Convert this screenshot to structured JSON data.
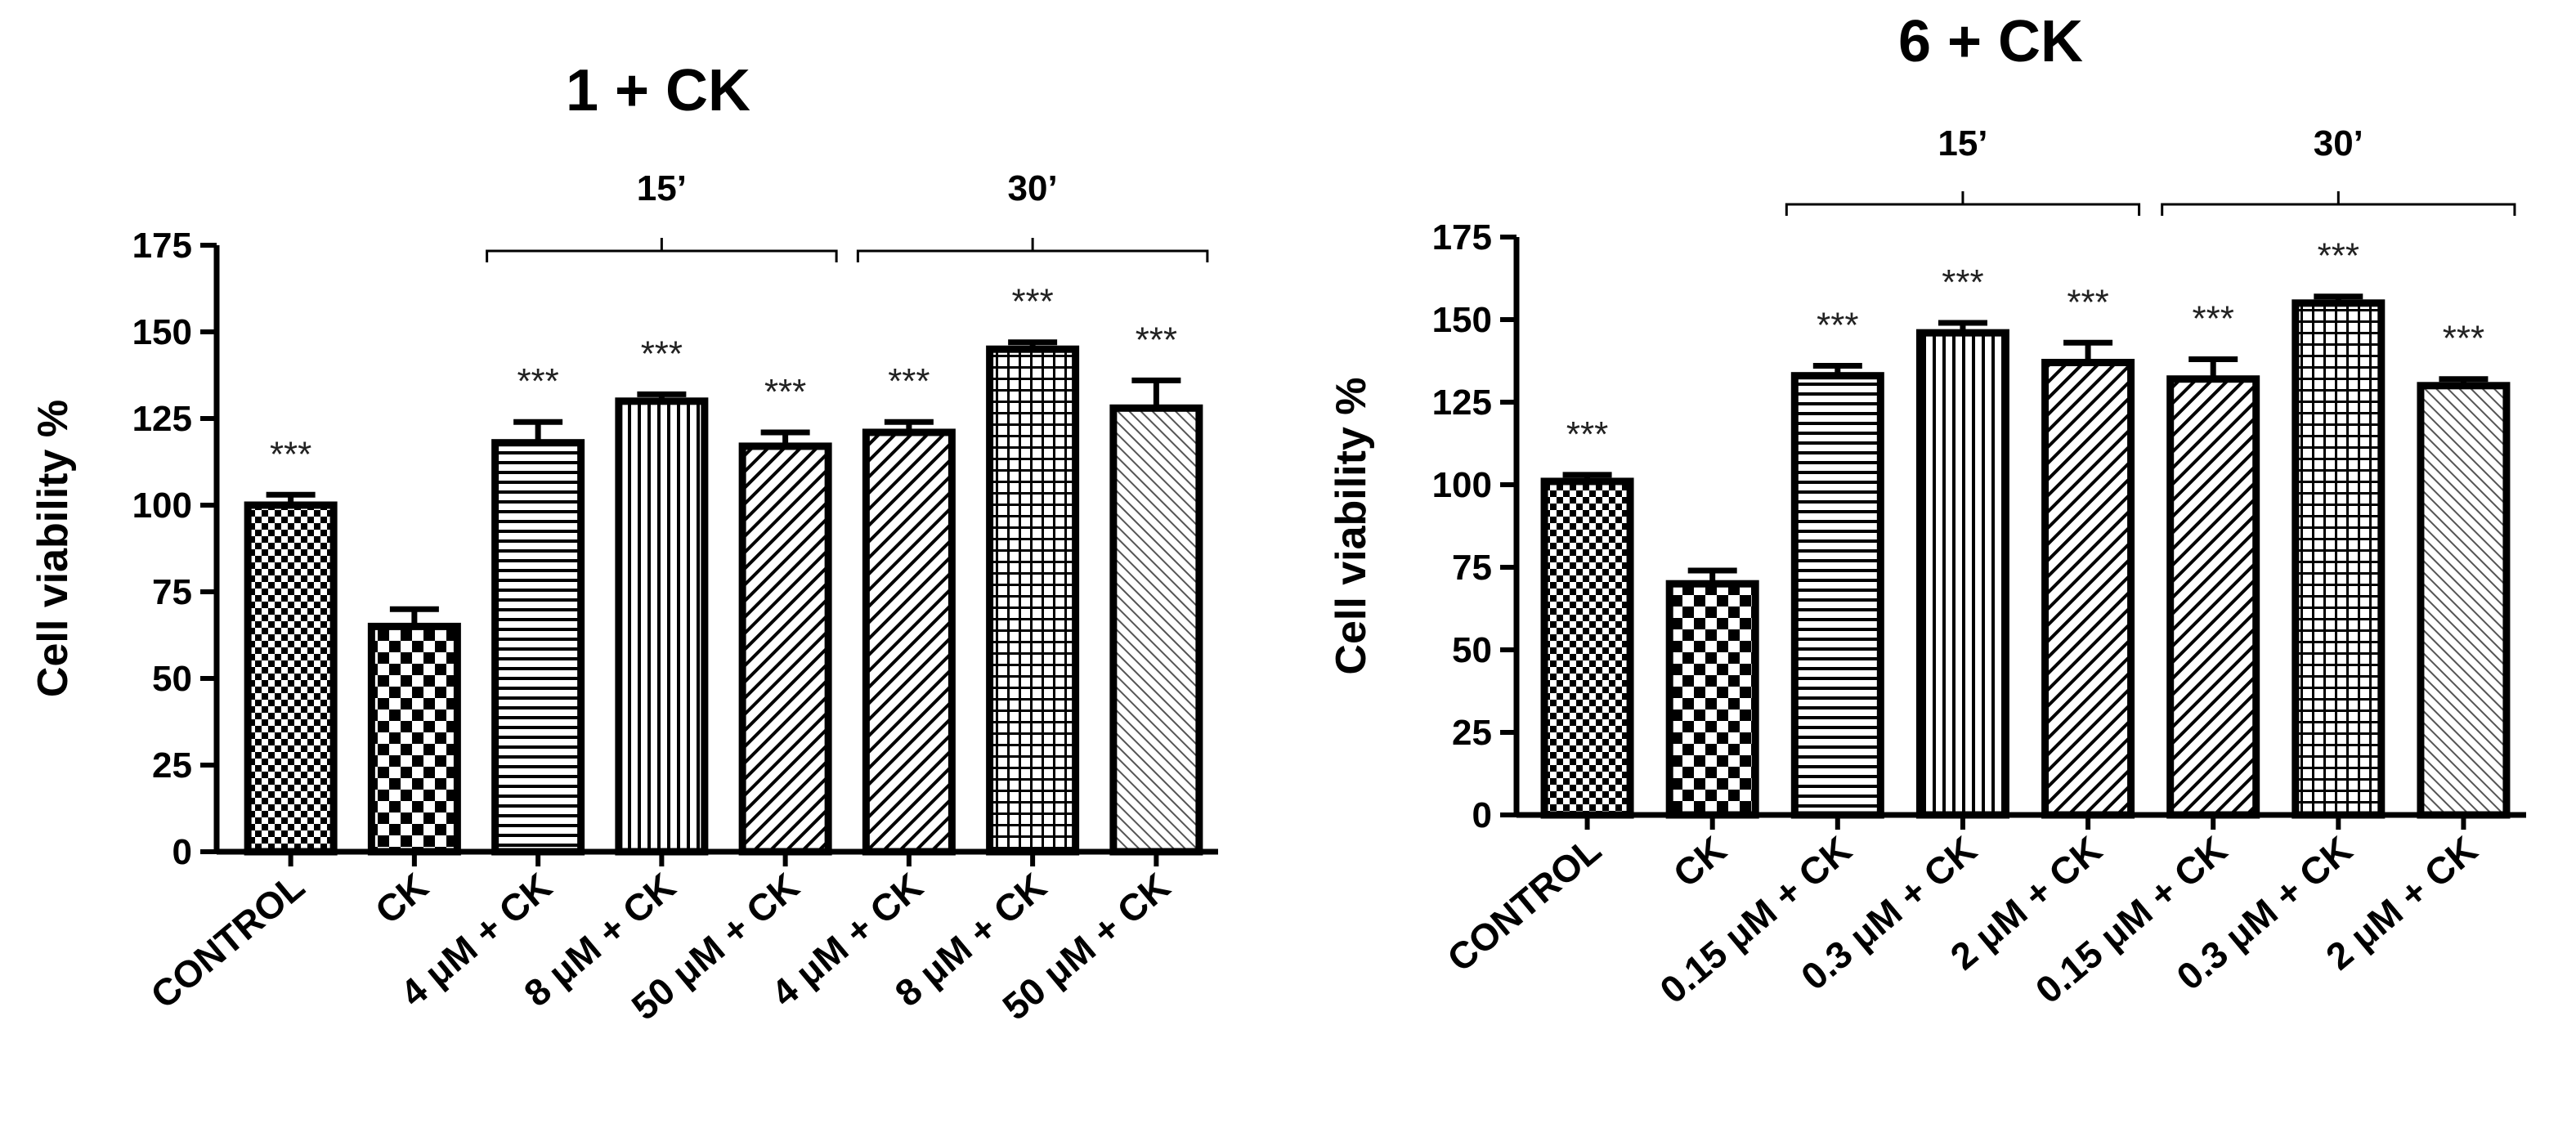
{
  "chart_data": [
    {
      "type": "bar",
      "title": "1 + CK",
      "ylabel": "Cell viability %",
      "xlabel": "",
      "ylim": [
        0,
        175
      ],
      "yticks": [
        0,
        25,
        50,
        75,
        100,
        125,
        150,
        175
      ],
      "categories": [
        "CONTROL",
        "CK",
        "4 μM + CK",
        "8 μM + CK",
        "50 μM + CK",
        "4 μM + CK",
        "8 μM + CK",
        "50 μM + CK"
      ],
      "values": [
        100,
        65,
        118,
        130,
        117,
        121,
        145,
        128
      ],
      "errors": [
        3,
        5,
        6,
        2,
        4,
        3,
        2,
        8
      ],
      "significance": [
        "***",
        "",
        "***",
        "***",
        "***",
        "***",
        "***",
        "***"
      ],
      "patterns": [
        "checker-small",
        "checker-large",
        "hlines",
        "vlines",
        "diag-dense",
        "diag-dense",
        "grid",
        "diag-fine"
      ],
      "groups": [
        {
          "label": "15’",
          "from": 2,
          "to": 4
        },
        {
          "label": "30’",
          "from": 5,
          "to": 7
        }
      ],
      "grid": false,
      "legend": "none"
    },
    {
      "type": "bar",
      "title": "6 + CK",
      "ylabel": "Cell viability %",
      "xlabel": "",
      "ylim": [
        0,
        175
      ],
      "yticks": [
        0,
        25,
        50,
        75,
        100,
        125,
        150,
        175
      ],
      "categories": [
        "CONTROL",
        "CK",
        "0.15 μM + CK",
        "0.3 μM + CK",
        "2 μM + CK",
        "0.15 μM + CK",
        "0.3 μM + CK",
        "2 μM + CK"
      ],
      "values": [
        101,
        70,
        133,
        146,
        137,
        132,
        155,
        130
      ],
      "errors": [
        2,
        4,
        3,
        3,
        6,
        6,
        2,
        2
      ],
      "significance": [
        "***",
        "",
        "***",
        "***",
        "***",
        "***",
        "***",
        "***"
      ],
      "patterns": [
        "checker-small",
        "checker-large",
        "hlines",
        "vlines",
        "diag-dense",
        "diag-dense",
        "grid",
        "diag-fine"
      ],
      "groups": [
        {
          "label": "15’",
          "from": 2,
          "to": 4
        },
        {
          "label": "30’",
          "from": 5,
          "to": 7
        }
      ],
      "grid": false,
      "legend": "none"
    }
  ]
}
